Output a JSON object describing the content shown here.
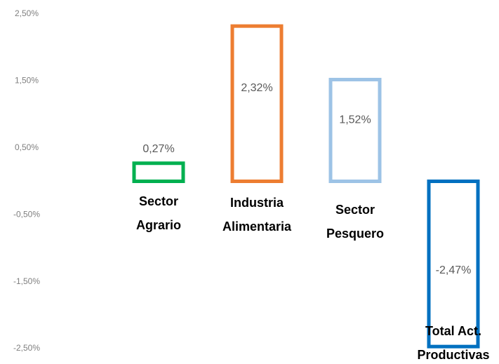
{
  "chart_data": {
    "type": "bar",
    "categories": [
      "Sector\nAgrario",
      "Industria\nAlimentaria",
      "Sector\nPesquero",
      "Total Act.\nProductivas"
    ],
    "values": [
      0.27,
      2.32,
      1.52,
      -2.47
    ],
    "value_labels": [
      "0,27%",
      "2,32%",
      "1,52%",
      "-2,47%"
    ],
    "colors": [
      "#00b050",
      "#ed7d31",
      "#9dc3e6",
      "#0070c0"
    ],
    "ylim": [
      -2.5,
      2.5
    ],
    "yticks": [
      {
        "value": 2.5,
        "label": "2,50%"
      },
      {
        "value": 1.5,
        "label": "1,50%"
      },
      {
        "value": 0.5,
        "label": "0,50%"
      },
      {
        "value": -0.5,
        "label": "-0,50%"
      },
      {
        "value": -1.5,
        "label": "-1,50%"
      },
      {
        "value": -2.5,
        "label": "-2,50%"
      }
    ],
    "grid": false
  }
}
